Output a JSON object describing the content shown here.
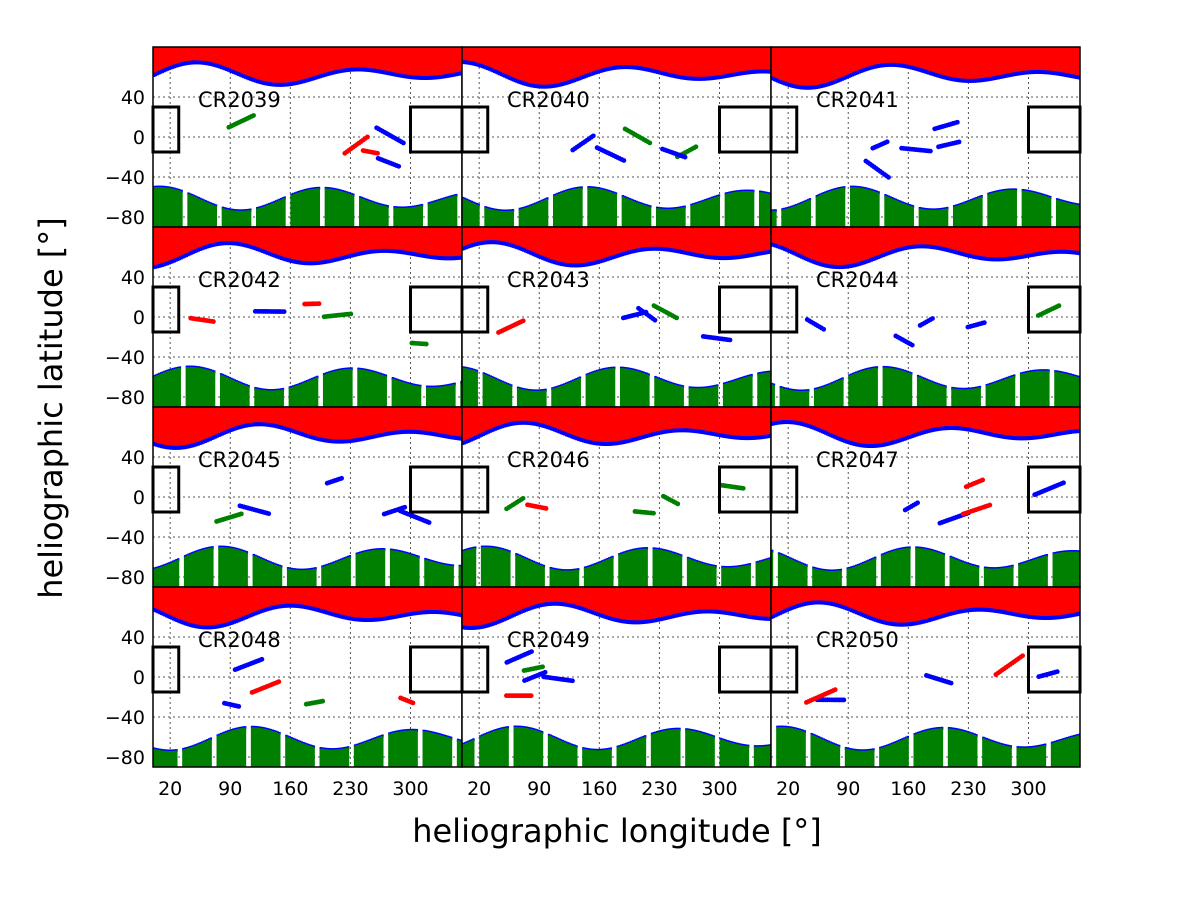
{
  "chart_data": {
    "type": "scatter",
    "xlabel": "heliographic longitude [°]",
    "ylabel": "heliographic latitude [°]",
    "xlim": [
      0,
      360
    ],
    "ylim": [
      -90,
      90
    ],
    "grid": true,
    "x_tick_labels": [
      "20",
      "90",
      "160",
      "230",
      "300"
    ],
    "x_ticks": [
      20,
      90,
      160,
      230,
      300
    ],
    "y_tick_labels": [
      "40",
      "0",
      "−40",
      "−80"
    ],
    "y_ticks": [
      40,
      0,
      -40,
      -80
    ],
    "layout": {
      "rows": 4,
      "cols": 3
    },
    "series_colors": {
      "north": "#ff0000",
      "boundary": "#0000ff",
      "south": "#008000"
    },
    "highlight_boxes": [
      {
        "lon": [
          0,
          30
        ],
        "lat": [
          -15,
          30
        ]
      },
      {
        "lon": [
          300,
          360
        ],
        "lat": [
          -15,
          30
        ]
      }
    ],
    "panels": [
      {
        "label": "CR2039"
      },
      {
        "label": "CR2040"
      },
      {
        "label": "CR2041"
      },
      {
        "label": "CR2042"
      },
      {
        "label": "CR2043"
      },
      {
        "label": "CR2044"
      },
      {
        "label": "CR2045"
      },
      {
        "label": "CR2046"
      },
      {
        "label": "CR2047"
      },
      {
        "label": "CR2048"
      },
      {
        "label": "CR2049"
      },
      {
        "label": "CR2050"
      }
    ]
  }
}
